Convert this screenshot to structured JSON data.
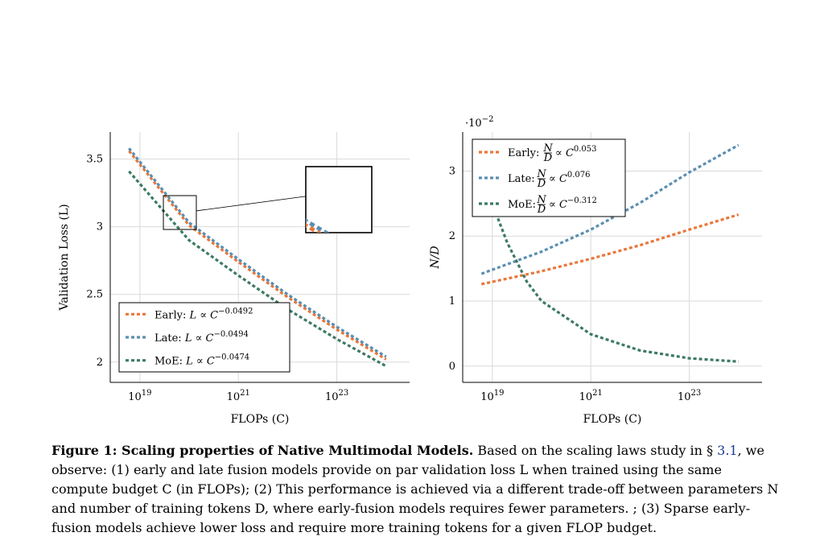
{
  "colors": {
    "early": "#e8773a",
    "late": "#5b8fb0",
    "moe": "#3c7a61"
  },
  "chart_data": [
    {
      "type": "line",
      "xlabel": "FLOPs (C)",
      "ylabel": "Validation Loss (L)",
      "xscale": "log",
      "xlim": [
        2.5e+18,
        3e+24
      ],
      "ylim": [
        1.85,
        3.7
      ],
      "xticks": [
        {
          "value": 1e+19,
          "base": "10",
          "exp": "19"
        },
        {
          "value": 1e+21,
          "base": "10",
          "exp": "21"
        },
        {
          "value": 1e+23,
          "base": "10",
          "exp": "23"
        }
      ],
      "yticks": [
        {
          "value": 2,
          "label": "2"
        },
        {
          "value": 2.5,
          "label": "2.5"
        },
        {
          "value": 3,
          "label": "3"
        },
        {
          "value": 3.5,
          "label": "3.5"
        }
      ],
      "grid": true,
      "legend_position": "bottom-left",
      "series": [
        {
          "key": "early",
          "legend": [
            "Early: ",
            "L",
            " ∝ ",
            "C",
            "−0.0492"
          ],
          "x": [
            6e+18,
            1e+20,
            1e+21,
            1e+22,
            1e+23,
            1e+24
          ],
          "y": [
            3.56,
            3.01,
            2.74,
            2.48,
            2.24,
            2.02
          ]
        },
        {
          "key": "late",
          "legend": [
            "Late: ",
            "L",
            " ∝ ",
            "C",
            "−0.0494"
          ],
          "x": [
            6e+18,
            1e+20,
            1e+21,
            1e+22,
            1e+23,
            1e+24
          ],
          "y": [
            3.58,
            3.03,
            2.76,
            2.5,
            2.26,
            2.04
          ]
        },
        {
          "key": "moe",
          "legend": [
            "MoE: ",
            "L",
            " ∝ ",
            "C",
            "−0.0474"
          ],
          "x": [
            6e+18,
            1e+20,
            1e+21,
            1e+22,
            1e+23,
            1e+24
          ],
          "y": [
            3.41,
            2.9,
            2.64,
            2.39,
            2.17,
            1.97
          ]
        }
      ]
    },
    {
      "type": "line",
      "xlabel": "FLOPs (C)",
      "ylabel": "N/D",
      "y_multiplier": "·10",
      "y_multiplier_exp": "−2",
      "xscale": "log",
      "xlim": [
        2.5e+18,
        3e+24
      ],
      "ylim": [
        -0.25,
        3.6
      ],
      "xticks": [
        {
          "value": 1e+19,
          "base": "10",
          "exp": "19"
        },
        {
          "value": 1e+21,
          "base": "10",
          "exp": "21"
        },
        {
          "value": 1e+23,
          "base": "10",
          "exp": "23"
        }
      ],
      "yticks": [
        {
          "value": 0,
          "label": "0"
        },
        {
          "value": 1,
          "label": "1"
        },
        {
          "value": 2,
          "label": "2"
        },
        {
          "value": 3,
          "label": "3"
        }
      ],
      "grid": true,
      "legend_position": "top-left",
      "series": [
        {
          "key": "early",
          "legend": [
            "Early: ",
            "N/D",
            " ∝ ",
            "C",
            "0.053"
          ],
          "x": [
            6e+18,
            1e+20,
            1e+21,
            1e+22,
            1e+23,
            1e+24
          ],
          "y": [
            1.26,
            1.46,
            1.65,
            1.86,
            2.1,
            2.33
          ]
        },
        {
          "key": "late",
          "legend": [
            "Late: ",
            "N/D",
            " ∝ ",
            "C",
            "0.076"
          ],
          "x": [
            6e+18,
            1e+20,
            1e+21,
            1e+22,
            1e+23,
            1e+24
          ],
          "y": [
            1.42,
            1.76,
            2.1,
            2.51,
            2.98,
            3.4
          ]
        },
        {
          "key": "moe",
          "legend": [
            "MoE: ",
            "N/D",
            " ∝ ",
            "C",
            "−0.312"
          ],
          "x": [
            6e+18,
            1e+19,
            2e+19,
            5e+19,
            1e+20,
            1e+21,
            1e+22,
            1e+23,
            1e+24
          ],
          "y": [
            3.1,
            2.5,
            1.9,
            1.3,
            1.0,
            0.49,
            0.24,
            0.12,
            0.07
          ]
        }
      ]
    }
  ],
  "caption": {
    "lead": "Figure 1: Scaling properties of Native Multimodal Models.",
    "text_before_ref": " Based on the scaling laws study in § ",
    "ref": "3.1",
    "text_after_ref": ", we observe: (1) early and late fusion models provide on par validation loss L when trained using the same compute budget C (in FLOPs); (2) This performance is achieved via a different trade-off between parameters N and number of training tokens D, where early-fusion models requires fewer parameters. ; (3) Sparse early-fusion models achieve lower loss and require more training tokens for a given FLOP budget."
  }
}
